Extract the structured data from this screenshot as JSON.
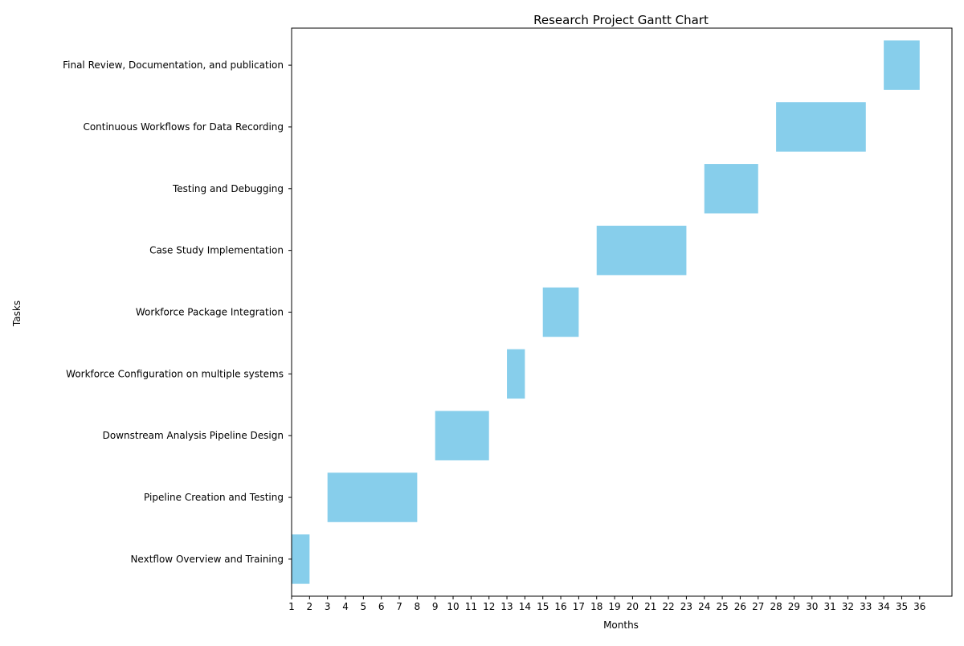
{
  "chart_data": {
    "type": "bar",
    "orientation": "horizontal",
    "title": "Research Project Gantt Chart",
    "xlabel": "Months",
    "ylabel": "Tasks",
    "xlim": [
      1,
      37.8
    ],
    "x_ticks": [
      1,
      2,
      3,
      4,
      5,
      6,
      7,
      8,
      9,
      10,
      11,
      12,
      13,
      14,
      15,
      16,
      17,
      18,
      19,
      20,
      21,
      22,
      23,
      24,
      25,
      26,
      27,
      28,
      29,
      30,
      31,
      32,
      33,
      34,
      35,
      36
    ],
    "bar_color": "#87CEEB",
    "grid": false,
    "tasks": [
      {
        "name": "Nextflow Overview and Training",
        "start": 1,
        "end": 2
      },
      {
        "name": "Pipeline Creation and Testing",
        "start": 3,
        "end": 8
      },
      {
        "name": "Downstream Analysis Pipeline Design",
        "start": 9,
        "end": 12
      },
      {
        "name": "Workforce Configuration on multiple systems",
        "start": 13,
        "end": 14
      },
      {
        "name": "Workforce Package Integration",
        "start": 15,
        "end": 17
      },
      {
        "name": "Case Study Implementation",
        "start": 18,
        "end": 23
      },
      {
        "name": "Testing and Debugging",
        "start": 24,
        "end": 27
      },
      {
        "name": "Continuous Workflows for Data Recording",
        "start": 28,
        "end": 33
      },
      {
        "name": "Final Review, Documentation, and publication",
        "start": 34,
        "end": 36
      }
    ]
  }
}
